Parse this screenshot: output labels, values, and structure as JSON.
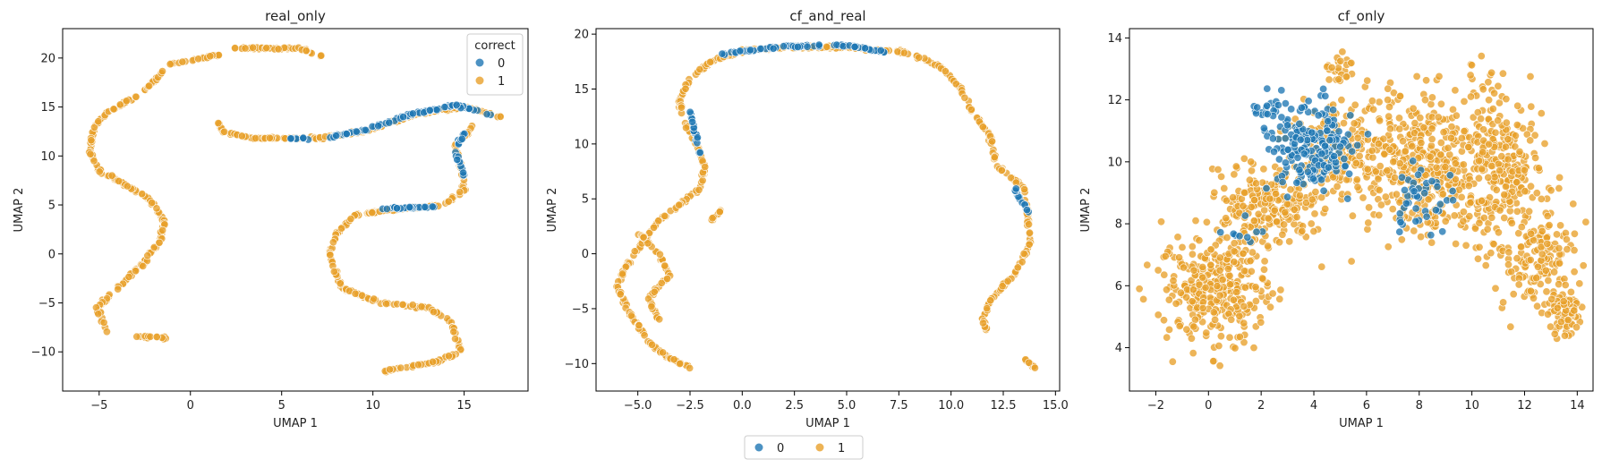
{
  "colors": {
    "class0": "#1f77b4",
    "class1": "#e8a02a"
  },
  "legend_bottom": {
    "entries": [
      "0",
      "1"
    ],
    "placement": "bottom-center"
  },
  "chart_data": [
    {
      "type": "scatter",
      "title": "real_only",
      "xlabel": "UMAP 1",
      "ylabel": "UMAP 2",
      "xlim": [
        -7,
        18.5
      ],
      "ylim": [
        -14,
        23
      ],
      "xticks": [
        -5,
        0,
        5,
        10,
        15
      ],
      "yticks": [
        -10,
        -5,
        0,
        5,
        10,
        15,
        20
      ],
      "legend": {
        "title": "correct",
        "entries": [
          "0",
          "1"
        ],
        "placement": "top-right"
      },
      "series": [
        {
          "class": "1",
          "curves": [
            [
              [
                2,
                21
              ],
              [
                6,
                21
              ],
              [
                7.2,
                20.2
              ]
            ],
            [
              [
                -1.2,
                19.4
              ],
              [
                1.6,
                20.3
              ]
            ],
            [
              [
                -5.5,
                10.5
              ],
              [
                -5.3,
                13
              ],
              [
                -4.5,
                14.5
              ],
              [
                -3,
                16
              ],
              [
                -2,
                17.6
              ],
              [
                -1.5,
                18.6
              ]
            ],
            [
              [
                -5.5,
                10.5
              ],
              [
                -5,
                8.5
              ],
              [
                -3.5,
                7
              ],
              [
                -2.2,
                5.5
              ],
              [
                -1.4,
                3.3
              ],
              [
                -1.6,
                1.5
              ],
              [
                -2.6,
                -1
              ],
              [
                -4,
                -3.5
              ],
              [
                -5.1,
                -5.5
              ],
              [
                -4.6,
                -8
              ]
            ],
            [
              [
                -3,
                -8.4
              ],
              [
                -1.3,
                -8.6
              ]
            ],
            [
              [
                1.3,
                14
              ],
              [
                1.8,
                12.5
              ],
              [
                3.5,
                11.8
              ],
              [
                7,
                11.8
              ],
              [
                9.5,
                12.5
              ],
              [
                12.5,
                14.3
              ],
              [
                15,
                15
              ],
              [
                17,
                14
              ]
            ],
            [
              [
                15.5,
                13
              ],
              [
                14.5,
                11
              ],
              [
                14.8,
                9
              ],
              [
                15,
                6.5
              ],
              [
                13.8,
                5
              ],
              [
                11,
                4.5
              ],
              [
                9,
                4
              ],
              [
                8,
                2
              ],
              [
                7.6,
                0
              ],
              [
                8.3,
                -3.5
              ],
              [
                10.5,
                -5
              ],
              [
                13,
                -5.5
              ],
              [
                14.3,
                -7
              ],
              [
                14.8,
                -10
              ],
              [
                13.5,
                -11
              ],
              [
                10.5,
                -12
              ]
            ]
          ]
        },
        {
          "class": "0",
          "curves": [
            [
              [
                7.5,
                11.9
              ],
              [
                9.5,
                12.6
              ],
              [
                12,
                14.2
              ],
              [
                14.5,
                15.2
              ],
              [
                16.5,
                14.2
              ]
            ],
            [
              [
                15,
                12.5
              ],
              [
                14.5,
                10.5
              ],
              [
                15,
                8
              ]
            ],
            [
              [
                5.5,
                11.8
              ],
              [
                6.5,
                11.8
              ]
            ],
            [
              [
                10.5,
                4.6
              ],
              [
                13.5,
                4.8
              ]
            ]
          ]
        }
      ]
    },
    {
      "type": "scatter",
      "title": "cf_and_real",
      "xlabel": "UMAP 1",
      "ylabel": "UMAP 2",
      "xlim": [
        -7,
        15.2
      ],
      "ylim": [
        -12.5,
        20.5
      ],
      "xticks": [
        -5.0,
        -2.5,
        0.0,
        2.5,
        5.0,
        7.5,
        10.0,
        12.5,
        15.0
      ],
      "yticks": [
        -10,
        -5,
        0,
        5,
        10,
        15,
        20
      ],
      "series": [
        {
          "class": "1",
          "curves": [
            [
              [
                -2.5,
                16
              ],
              [
                -1.5,
                17.5
              ],
              [
                0,
                18.5
              ],
              [
                2,
                18.8
              ],
              [
                5,
                18.8
              ],
              [
                8,
                18.3
              ],
              [
                9.5,
                17
              ],
              [
                10.5,
                15
              ],
              [
                11,
                13
              ],
              [
                11.8,
                11
              ],
              [
                12.2,
                8
              ],
              [
                13.5,
                6
              ],
              [
                13.7,
                3
              ],
              [
                13.8,
                1
              ],
              [
                13,
                -2
              ],
              [
                12,
                -4
              ],
              [
                11.5,
                -6
              ],
              [
                11.8,
                -7.5
              ]
            ],
            [
              [
                -2.5,
                16
              ],
              [
                -3,
                14
              ],
              [
                -2.8,
                12
              ],
              [
                -2.2,
                10
              ],
              [
                -1.8,
                8
              ],
              [
                -2,
                6
              ],
              [
                -3,
                4.5
              ],
              [
                -4,
                3
              ],
              [
                -4.8,
                1
              ],
              [
                -5.5,
                -1
              ],
              [
                -6,
                -3
              ],
              [
                -5.5,
                -5
              ],
              [
                -5,
                -6.5
              ],
              [
                -4.5,
                -8
              ],
              [
                -3.5,
                -9.5
              ],
              [
                -2.5,
                -10.3
              ]
            ],
            [
              [
                -5,
                2
              ],
              [
                -4,
                0
              ],
              [
                -3.5,
                -2
              ],
              [
                -4.5,
                -4
              ],
              [
                -4,
                -6
              ]
            ],
            [
              [
                -1.5,
                3
              ],
              [
                -1,
                4
              ]
            ],
            [
              [
                13.5,
                -9.5
              ],
              [
                14.2,
                -10.8
              ]
            ]
          ]
        },
        {
          "class": "0",
          "curves": [
            [
              [
                -1,
                18.2
              ],
              [
                2,
                18.9
              ],
              [
                5,
                19
              ],
              [
                7,
                18.3
              ]
            ],
            [
              [
                -2.5,
                13
              ],
              [
                -2,
                9
              ]
            ],
            [
              [
                13,
                6
              ],
              [
                13.7,
                3.8
              ]
            ]
          ]
        }
      ]
    },
    {
      "type": "scatter",
      "title": "cf_only",
      "xlabel": "UMAP 1",
      "ylabel": "UMAP 2",
      "xlim": [
        -3,
        14.6
      ],
      "ylim": [
        2.6,
        14.3
      ],
      "xticks": [
        -2,
        0,
        2,
        4,
        6,
        8,
        10,
        12,
        14
      ],
      "yticks": [
        4,
        6,
        8,
        10,
        12,
        14
      ],
      "series": [
        {
          "class": "1",
          "clusters": [
            {
              "cx": 0.3,
              "cy": 5.9,
              "rx": 1.9,
              "ry": 1.6,
              "n": 330
            },
            {
              "cx": 2.2,
              "cy": 8.6,
              "rx": 1.8,
              "ry": 1.1,
              "n": 230
            },
            {
              "cx": 5.0,
              "cy": 10.2,
              "rx": 1.7,
              "ry": 1.4,
              "n": 160
            },
            {
              "cx": 8.3,
              "cy": 10.0,
              "rx": 2.3,
              "ry": 2.1,
              "n": 420
            },
            {
              "cx": 11.0,
              "cy": 9.6,
              "rx": 1.5,
              "ry": 2.3,
              "n": 280
            },
            {
              "cx": 12.6,
              "cy": 6.8,
              "rx": 1.2,
              "ry": 1.5,
              "n": 130
            },
            {
              "cx": 13.5,
              "cy": 5.2,
              "rx": 0.55,
              "ry": 0.65,
              "n": 70
            },
            {
              "cx": 4.9,
              "cy": 12.9,
              "rx": 0.5,
              "ry": 0.9,
              "n": 25
            }
          ]
        },
        {
          "class": "0",
          "clusters": [
            {
              "cx": 4.0,
              "cy": 10.5,
              "rx": 1.4,
              "ry": 1.2,
              "n": 190
            },
            {
              "cx": 8.0,
              "cy": 8.8,
              "rx": 1.2,
              "ry": 1.0,
              "n": 45
            },
            {
              "cx": 2.4,
              "cy": 11.6,
              "rx": 0.8,
              "ry": 0.6,
              "n": 25
            },
            {
              "cx": 1.3,
              "cy": 7.7,
              "rx": 0.6,
              "ry": 0.35,
              "n": 10
            }
          ]
        }
      ]
    }
  ]
}
